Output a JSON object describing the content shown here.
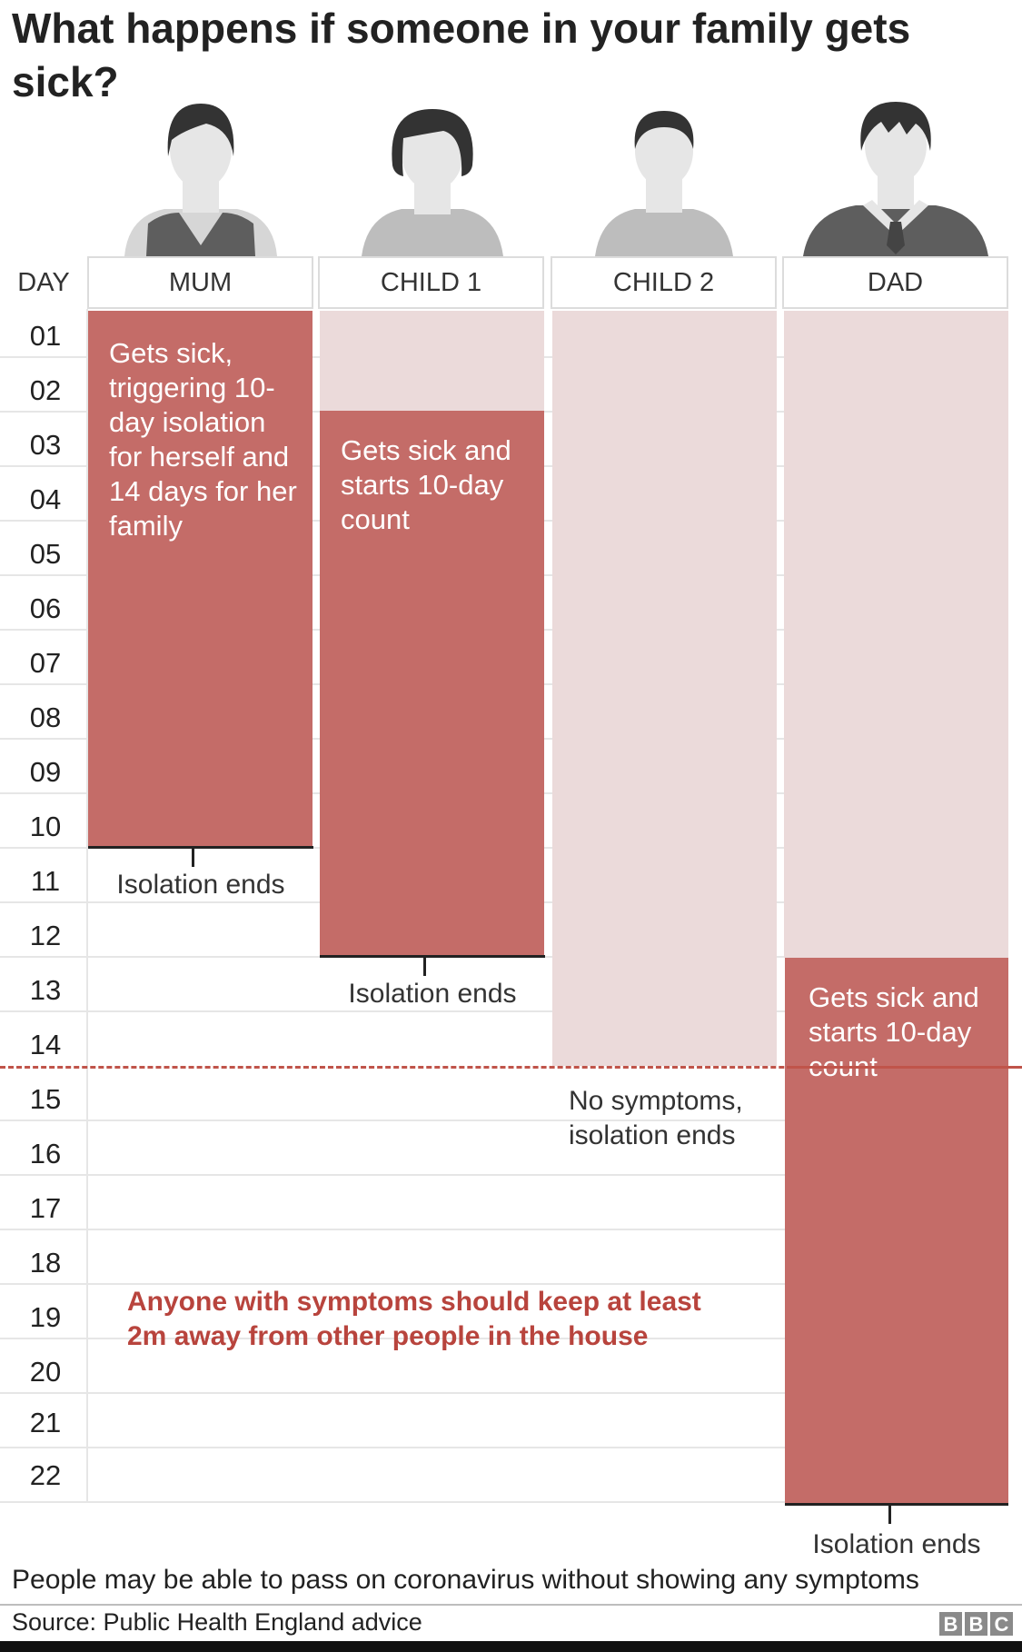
{
  "title": "What happens if someone in your family gets sick?",
  "day_header": "DAY",
  "members": [
    {
      "name": "MUM",
      "icon": "woman-avatar-icon"
    },
    {
      "name": "CHILD 1",
      "icon": "girl-avatar-icon"
    },
    {
      "name": "CHILD 2",
      "icon": "boy-avatar-icon"
    },
    {
      "name": "DAD",
      "icon": "man-avatar-icon"
    }
  ],
  "days": [
    "01",
    "02",
    "03",
    "04",
    "05",
    "06",
    "07",
    "08",
    "09",
    "10",
    "11",
    "12",
    "13",
    "14",
    "15",
    "16",
    "17",
    "18",
    "19",
    "20",
    "21",
    "22"
  ],
  "timeline": {
    "mum": {
      "sick_start_day": 1,
      "isolation_end_day": 10,
      "sick_text": "Gets sick, triggering 10-day isolation for herself and 14 days for her family",
      "end_text": "Isolation ends"
    },
    "child1": {
      "sick_start_day": 3,
      "isolation_end_day": 12,
      "sick_text": "Gets sick and starts 10-day count",
      "end_text": "Isolation ends"
    },
    "child2": {
      "isolation_end_day": 14,
      "end_text": "No symptoms, isolation ends"
    },
    "dad": {
      "sick_start_day": 13,
      "isolation_end_day": 22,
      "sick_text": "Gets sick and starts 10-day count",
      "end_text": "Isolation ends"
    }
  },
  "note": "Anyone with symptoms should keep at least 2m away from other people in the house",
  "footnote": "People may be able to pass on coronavirus without showing any symptoms",
  "source": "Source: Public Health England advice",
  "brand": [
    "B",
    "B",
    "C"
  ],
  "colors": {
    "sick": "#c46c68",
    "household_isolation": "#ebdada",
    "cutoff_line": "#c0544a",
    "note_text": "#b8443d"
  }
}
